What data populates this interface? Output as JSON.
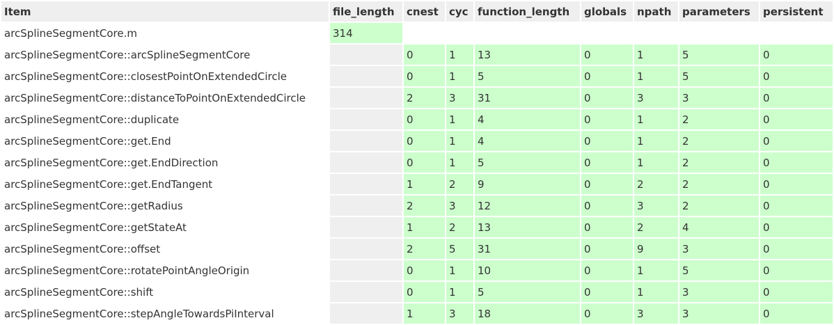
{
  "columns": [
    "Item",
    "file_length",
    "cnest",
    "cyc",
    "function_length",
    "globals",
    "npath",
    "parameters",
    "persistent"
  ],
  "rows": [
    {
      "item": "arcSplineSegmentCore.m",
      "file_length": "314",
      "cnest": "",
      "cyc": "",
      "function_length": "",
      "globals": "",
      "npath": "",
      "parameters": "",
      "persistent": ""
    },
    {
      "item": "arcSplineSegmentCore::arcSplineSegmentCore",
      "file_length": "",
      "cnest": "0",
      "cyc": "1",
      "function_length": "13",
      "globals": "0",
      "npath": "1",
      "parameters": "5",
      "persistent": "0"
    },
    {
      "item": "arcSplineSegmentCore::closestPointOnExtendedCircle",
      "file_length": "",
      "cnest": "0",
      "cyc": "1",
      "function_length": "5",
      "globals": "0",
      "npath": "1",
      "parameters": "5",
      "persistent": "0"
    },
    {
      "item": "arcSplineSegmentCore::distanceToPointOnExtendedCircle",
      "file_length": "",
      "cnest": "2",
      "cyc": "3",
      "function_length": "31",
      "globals": "0",
      "npath": "3",
      "parameters": "3",
      "persistent": "0"
    },
    {
      "item": "arcSplineSegmentCore::duplicate",
      "file_length": "",
      "cnest": "0",
      "cyc": "1",
      "function_length": "4",
      "globals": "0",
      "npath": "1",
      "parameters": "2",
      "persistent": "0"
    },
    {
      "item": "arcSplineSegmentCore::get.End",
      "file_length": "",
      "cnest": "0",
      "cyc": "1",
      "function_length": "4",
      "globals": "0",
      "npath": "1",
      "parameters": "2",
      "persistent": "0"
    },
    {
      "item": "arcSplineSegmentCore::get.EndDirection",
      "file_length": "",
      "cnest": "0",
      "cyc": "1",
      "function_length": "5",
      "globals": "0",
      "npath": "1",
      "parameters": "2",
      "persistent": "0"
    },
    {
      "item": "arcSplineSegmentCore::get.EndTangent",
      "file_length": "",
      "cnest": "1",
      "cyc": "2",
      "function_length": "9",
      "globals": "0",
      "npath": "2",
      "parameters": "2",
      "persistent": "0"
    },
    {
      "item": "arcSplineSegmentCore::getRadius",
      "file_length": "",
      "cnest": "2",
      "cyc": "3",
      "function_length": "12",
      "globals": "0",
      "npath": "3",
      "parameters": "2",
      "persistent": "0"
    },
    {
      "item": "arcSplineSegmentCore::getStateAt",
      "file_length": "",
      "cnest": "1",
      "cyc": "2",
      "function_length": "13",
      "globals": "0",
      "npath": "2",
      "parameters": "4",
      "persistent": "0"
    },
    {
      "item": "arcSplineSegmentCore::offset",
      "file_length": "",
      "cnest": "2",
      "cyc": "5",
      "function_length": "31",
      "globals": "0",
      "npath": "9",
      "parameters": "3",
      "persistent": "0"
    },
    {
      "item": "arcSplineSegmentCore::rotatePointAngleOrigin",
      "file_length": "",
      "cnest": "0",
      "cyc": "1",
      "function_length": "10",
      "globals": "0",
      "npath": "1",
      "parameters": "5",
      "persistent": "0"
    },
    {
      "item": "arcSplineSegmentCore::shift",
      "file_length": "",
      "cnest": "0",
      "cyc": "1",
      "function_length": "5",
      "globals": "0",
      "npath": "1",
      "parameters": "3",
      "persistent": "0"
    },
    {
      "item": "arcSplineSegmentCore::stepAngleTowardsPiInterval",
      "file_length": "",
      "cnest": "1",
      "cyc": "3",
      "function_length": "18",
      "globals": "0",
      "npath": "3",
      "parameters": "3",
      "persistent": "0"
    }
  ],
  "colors": {
    "header_bg": "#efefef",
    "pass_bg": "#ccffcc",
    "empty_bg": "#efefef",
    "text": "#333333"
  }
}
